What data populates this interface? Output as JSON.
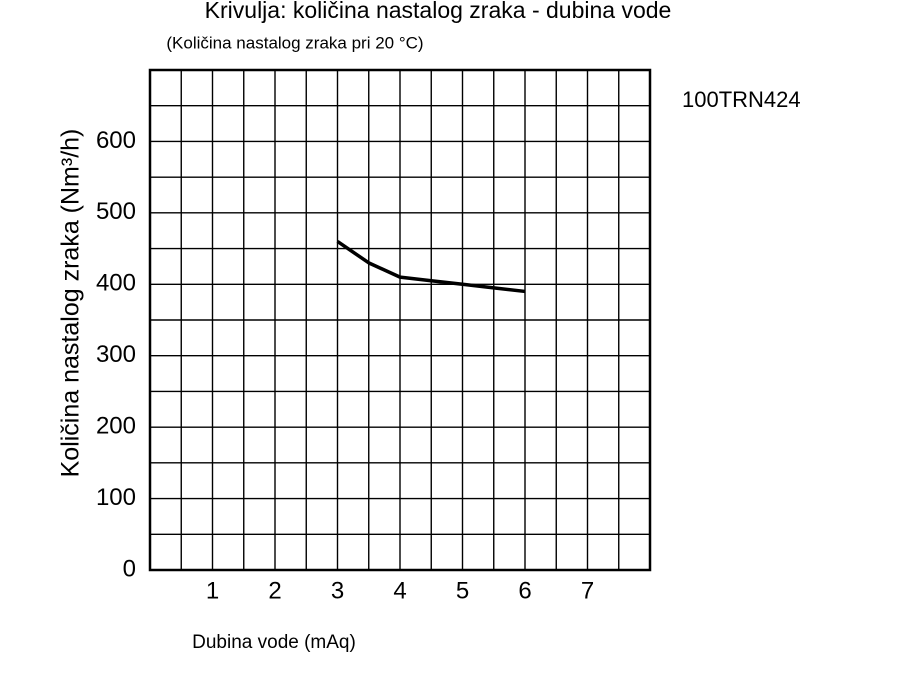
{
  "chart_data": {
    "type": "line",
    "title": "Krivulja: količina nastalog zraka - dubina vode",
    "subtitle": "(Količina nastalog zraka pri 20 °C)",
    "annotation": "100TRN424",
    "xlabel": "Dubina vode (mAq)",
    "ylabel": "Količina nastalog zraka (Nm³/h)",
    "x": [
      3,
      3.5,
      4,
      4.5,
      5,
      5.5,
      6
    ],
    "series": [
      {
        "name": "100TRN424",
        "color": "#000000",
        "values": [
          460,
          430,
          410,
          405,
          400,
          395,
          390
        ]
      }
    ],
    "xlim": [
      0,
      8
    ],
    "ylim": [
      0,
      700
    ],
    "xticks": [
      1,
      2,
      3,
      4,
      5,
      6,
      7
    ],
    "yticks": [
      0,
      100,
      200,
      300,
      400,
      500,
      600
    ],
    "grid": true,
    "x_grid_step": 0.5,
    "y_grid_step": 50
  }
}
